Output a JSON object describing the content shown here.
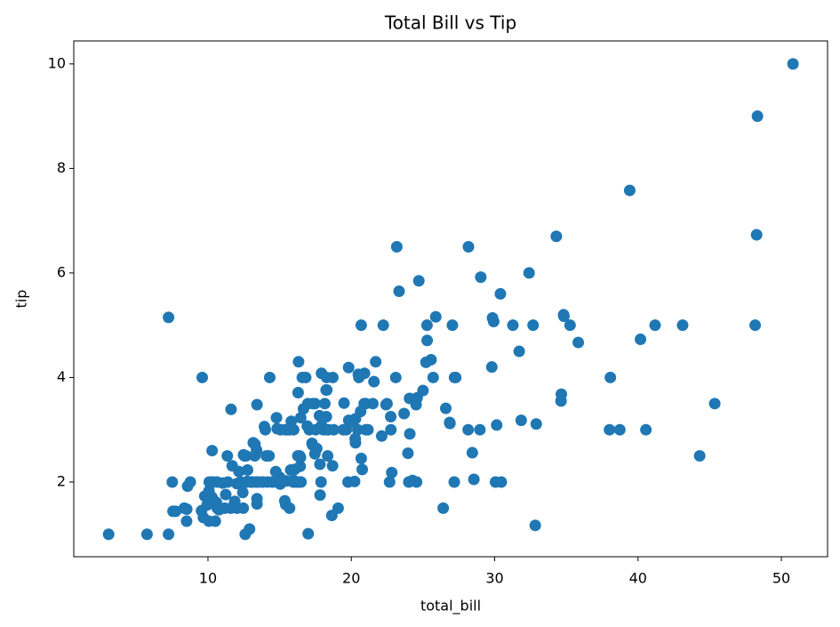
{
  "chart_data": {
    "type": "scatter",
    "title": "Total Bill vs Tip",
    "xlabel": "total_bill",
    "ylabel": "tip",
    "color": "#1f77b4",
    "xlim": [
      0.64,
      53.22
    ],
    "ylim": [
      0.57,
      10.44
    ],
    "xticks": [
      10,
      20,
      30,
      40,
      50
    ],
    "yticks": [
      2,
      4,
      6,
      8,
      10
    ],
    "x": [
      16.99,
      10.34,
      21.01,
      23.68,
      24.59,
      25.29,
      8.77,
      26.88,
      15.04,
      14.78,
      10.27,
      35.26,
      15.42,
      18.43,
      14.83,
      21.58,
      10.33,
      16.29,
      16.97,
      20.65,
      17.92,
      20.29,
      15.77,
      39.42,
      19.82,
      17.81,
      13.37,
      12.69,
      21.7,
      19.65,
      9.55,
      18.35,
      15.06,
      20.69,
      17.78,
      24.06,
      16.31,
      16.93,
      18.69,
      31.27,
      16.04,
      17.46,
      13.94,
      9.68,
      30.4,
      18.29,
      22.23,
      32.4,
      28.55,
      18.04,
      12.54,
      10.29,
      34.81,
      9.94,
      25.56,
      19.49,
      38.01,
      26.41,
      11.24,
      48.27,
      20.29,
      13.81,
      11.02,
      18.29,
      17.59,
      20.08,
      16.45,
      3.07,
      20.23,
      15.01,
      12.02,
      17.07,
      26.86,
      25.28,
      14.73,
      10.51,
      17.92,
      27.2,
      22.76,
      17.29,
      19.44,
      16.66,
      10.07,
      32.68,
      15.98,
      34.83,
      13.03,
      18.28,
      24.71,
      21.16,
      28.97,
      22.49,
      5.75,
      16.32,
      22.75,
      40.17,
      27.28,
      12.03,
      21.01,
      12.46,
      11.35,
      15.38,
      44.3,
      22.42,
      20.92,
      15.36,
      20.49,
      25.21,
      18.24,
      14.31,
      14.0,
      7.25,
      38.07,
      23.95,
      25.71,
      17.31,
      29.93,
      10.65,
      12.43,
      24.08,
      11.69,
      13.42,
      14.26,
      15.95,
      12.48,
      29.8,
      8.52,
      14.52,
      11.38,
      22.82,
      19.08,
      20.27,
      11.17,
      12.26,
      18.26,
      8.51,
      10.33,
      14.15,
      16.0,
      13.16,
      17.47,
      34.3,
      41.19,
      27.05,
      16.43,
      8.35,
      18.64,
      11.87,
      9.78,
      7.51,
      14.07,
      13.13,
      17.26,
      24.55,
      19.77,
      29.85,
      48.17,
      25.0,
      13.39,
      16.49,
      21.5,
      12.66,
      16.21,
      13.81,
      17.51,
      24.52,
      20.76,
      31.71,
      10.59,
      10.63,
      50.81,
      15.81,
      7.25,
      31.85,
      16.82,
      32.9,
      17.89,
      14.48,
      9.6,
      34.63,
      34.65,
      23.33,
      45.35,
      23.17,
      40.55,
      20.69,
      20.9,
      30.46,
      18.15,
      23.1,
      15.69,
      19.81,
      28.44,
      15.48,
      16.58,
      7.56,
      10.34,
      43.11,
      13.0,
      13.51,
      18.71,
      12.74,
      13.0,
      16.4,
      20.53,
      16.47,
      26.59,
      38.73,
      24.27,
      12.76,
      30.06,
      25.89,
      48.33,
      13.27,
      28.17,
      12.9,
      28.15,
      11.59,
      7.74,
      30.14,
      12.16,
      13.42,
      8.58,
      15.98,
      13.42,
      16.27,
      10.09,
      20.45,
      13.28,
      22.12,
      24.01,
      15.69,
      11.61,
      10.77,
      15.53,
      10.07,
      12.6,
      32.83,
      35.83,
      29.03,
      27.18,
      22.67,
      17.82,
      18.78
    ],
    "values": [
      1.01,
      1.66,
      3.5,
      3.31,
      3.61,
      4.71,
      2.0,
      3.12,
      1.96,
      3.23,
      1.71,
      5.0,
      1.57,
      3.0,
      3.02,
      3.92,
      1.67,
      3.71,
      3.5,
      3.35,
      4.08,
      2.75,
      2.23,
      7.58,
      3.18,
      2.34,
      2.0,
      2.0,
      4.3,
      3.0,
      1.45,
      2.5,
      3.0,
      2.45,
      3.27,
      3.6,
      2.0,
      3.07,
      2.31,
      5.0,
      2.24,
      2.54,
      3.06,
      1.32,
      5.6,
      3.0,
      5.0,
      6.0,
      2.05,
      3.0,
      2.5,
      2.6,
      5.2,
      1.56,
      4.34,
      3.51,
      3.0,
      1.5,
      1.76,
      6.73,
      3.21,
      2.0,
      1.98,
      3.76,
      2.64,
      3.15,
      2.47,
      1.0,
      2.01,
      2.09,
      1.97,
      3.0,
      3.14,
      5.0,
      2.2,
      1.25,
      3.08,
      4.0,
      3.0,
      2.71,
      3.0,
      3.4,
      1.83,
      5.0,
      2.03,
      5.17,
      2.0,
      4.0,
      5.85,
      3.0,
      3.0,
      3.5,
      1.0,
      4.3,
      3.25,
      4.73,
      4.0,
      1.5,
      3.0,
      1.5,
      2.5,
      3.0,
      2.5,
      3.48,
      4.08,
      1.64,
      4.06,
      4.29,
      3.76,
      4.0,
      3.0,
      1.0,
      4.0,
      2.55,
      4.0,
      3.5,
      5.07,
      1.5,
      1.8,
      2.92,
      2.31,
      1.68,
      2.5,
      2.0,
      2.52,
      4.2,
      1.48,
      2.0,
      2.0,
      2.18,
      1.5,
      2.83,
      1.5,
      2.0,
      3.25,
      1.25,
      2.0,
      2.0,
      2.0,
      2.75,
      3.5,
      6.7,
      5.0,
      5.0,
      2.3,
      1.5,
      1.36,
      1.63,
      1.73,
      2.0,
      2.5,
      2.0,
      2.74,
      2.0,
      2.0,
      5.14,
      5.0,
      3.75,
      2.61,
      2.0,
      3.5,
      2.5,
      2.0,
      2.0,
      3.0,
      3.48,
      2.24,
      4.5,
      1.61,
      2.0,
      10.0,
      3.16,
      5.15,
      3.18,
      4.0,
      3.11,
      2.0,
      2.0,
      4.0,
      3.55,
      3.68,
      5.65,
      3.5,
      6.5,
      3.0,
      5.0,
      3.5,
      2.0,
      3.5,
      4.0,
      1.5,
      4.19,
      2.56,
      2.02,
      4.0,
      1.44,
      2.0,
      5.0,
      2.0,
      2.0,
      4.0,
      2.01,
      2.0,
      2.5,
      4.0,
      3.23,
      3.41,
      3.0,
      2.03,
      2.23,
      2.0,
      5.16,
      9.0,
      2.5,
      6.5,
      1.1,
      3.0,
      1.5,
      1.44,
      3.09,
      2.2,
      3.48,
      1.92,
      3.0,
      1.58,
      2.5,
      2.0,
      3.0,
      2.72,
      2.88,
      2.0,
      3.0,
      3.39,
      1.47,
      3.0,
      1.25,
      1.0,
      1.17,
      4.67,
      5.92,
      2.0,
      2.0,
      1.75,
      3.0
    ]
  }
}
